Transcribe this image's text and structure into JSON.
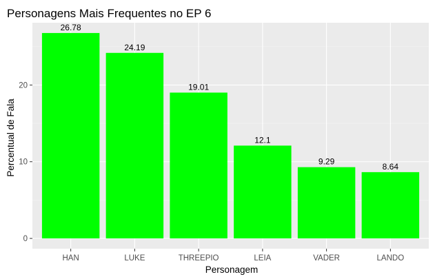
{
  "chart_data": {
    "type": "bar",
    "title": "Personagens Mais Frequentes no EP 6",
    "xlabel": "Personagem",
    "ylabel": "Percentual de Fala",
    "categories": [
      "HAN",
      "LUKE",
      "THREEPIO",
      "LEIA",
      "VADER",
      "LANDO"
    ],
    "values": [
      26.78,
      24.19,
      19.01,
      12.1,
      9.29,
      8.64
    ],
    "data_labels": [
      "26.78",
      "24.19",
      "19.01",
      "12.1",
      "9.29",
      "8.64"
    ],
    "yticks": [
      0,
      10,
      20
    ],
    "ytick_labels": [
      "0",
      "10",
      "20"
    ],
    "ylim": [
      -1.34,
      28.12
    ],
    "grid": true,
    "legend": "none",
    "colors": {
      "bar": "#00ff00",
      "panel": "#ebebeb",
      "grid_major": "#ffffff",
      "grid_minor": "#f4f4f4",
      "tick": "#333333"
    }
  }
}
